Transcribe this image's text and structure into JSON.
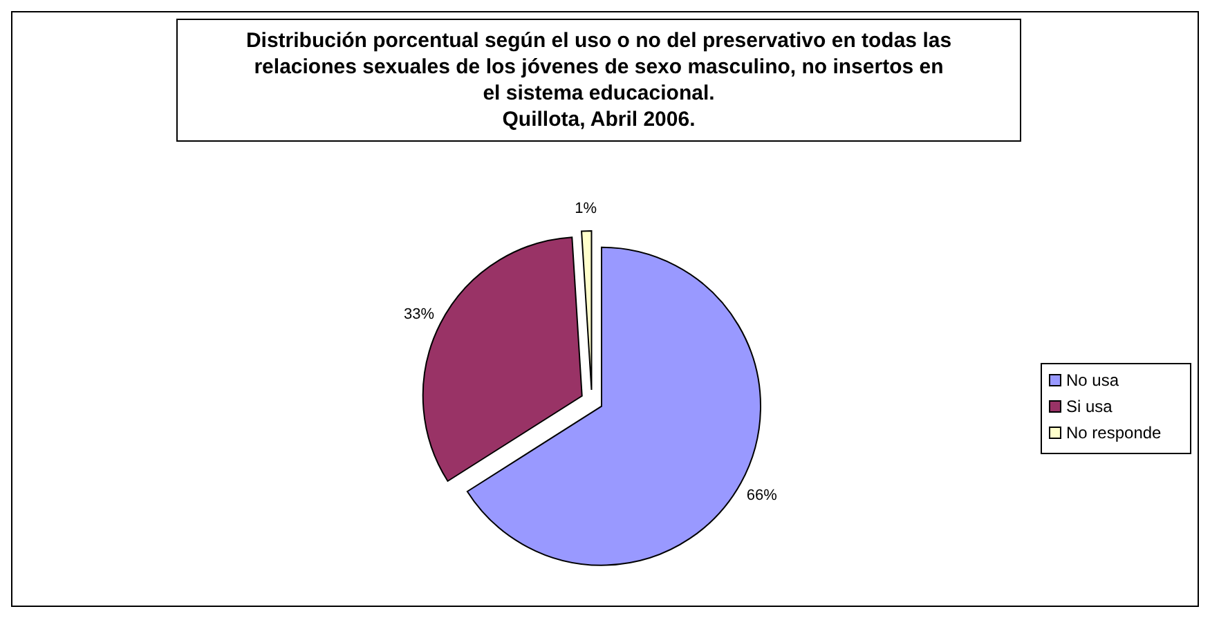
{
  "chart_data": {
    "type": "pie",
    "title": "Distribución porcentual según el uso o no del preservativo en todas las\nrelaciones sexuales de los jóvenes de sexo masculino, no insertos en\nel sistema educacional.",
    "subtitle": "Quillota, Abril 2006.",
    "categories": [
      "No usa",
      "Si usa",
      "No responde"
    ],
    "values": [
      66,
      33,
      1
    ],
    "colors": [
      "#9999ff",
      "#993366",
      "#ffffcc"
    ],
    "value_labels": [
      "66%",
      "33%",
      "1%"
    ],
    "legend": "right"
  }
}
